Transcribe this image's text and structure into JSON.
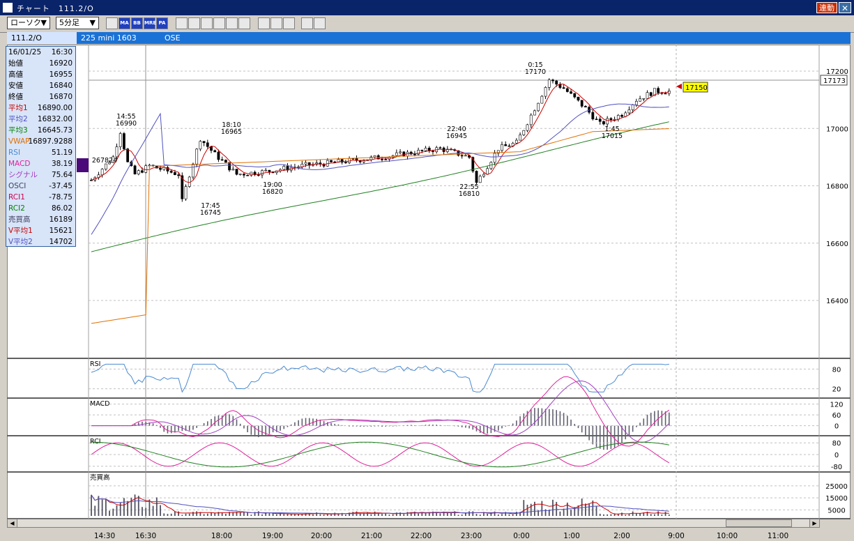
{
  "window": {
    "title": "チャート　111.2/O",
    "link_label": "連動",
    "close_label": "✕"
  },
  "toolbar": {
    "chart_type": "ローソク",
    "interval": "5分足",
    "icons": [
      "multi-chart",
      "ma",
      "bb",
      "mre",
      "pa",
      "line-chart",
      "candle-chart",
      "cross-cursor",
      "zoom",
      "draw-lines",
      "trend-lines",
      "pen",
      "pointer",
      "eraser",
      "magic",
      "fibonacci"
    ],
    "icon_labels": {
      "ma": "MA",
      "bb": "BB",
      "mre": "MRE",
      "pa": "PA"
    }
  },
  "infobar": {
    "symbol": "111.2/O",
    "name": "225 mini 1603",
    "exchange": "OSE"
  },
  "infobox": {
    "date": "16/01/25",
    "time": "16:30",
    "rows": [
      {
        "k": "始値",
        "v": "16920",
        "color": "#000000"
      },
      {
        "k": "高値",
        "v": "16955",
        "color": "#000000"
      },
      {
        "k": "安値",
        "v": "16840",
        "color": "#000000"
      },
      {
        "k": "終値",
        "v": "16870",
        "color": "#000000"
      },
      {
        "k": "平均1",
        "v": "16890.00",
        "color": "#cc0000"
      },
      {
        "k": "平均2",
        "v": "16832.00",
        "color": "#5050c0"
      },
      {
        "k": "平均3",
        "v": "16645.73",
        "color": "#008000"
      },
      {
        "k": "VWAP",
        "v": "16897.9288",
        "color": "#e07000"
      },
      {
        "k": "RSI",
        "v": "51.19",
        "color": "#4a8ad0"
      },
      {
        "k": "MACD",
        "v": "38.19",
        "color": "#e0209a"
      },
      {
        "k": "シグナル",
        "v": "75.64",
        "color": "#a040c0"
      },
      {
        "k": "OSCI",
        "v": "-37.45",
        "color": "#404060"
      },
      {
        "k": "RCI1",
        "v": "-78.75",
        "color": "#cc0050"
      },
      {
        "k": "RCI2",
        "v": "86.02",
        "color": "#008000"
      },
      {
        "k": "売買高",
        "v": "16189",
        "color": "#404060"
      },
      {
        "k": "V平均1",
        "v": "15621",
        "color": "#cc0000"
      },
      {
        "k": "V平均2",
        "v": "14702",
        "color": "#5050c0"
      }
    ]
  },
  "price_axis": {
    "ticks": [
      "17200",
      "17000",
      "16800",
      "16600",
      "16400"
    ],
    "current_label": "17173",
    "last_price_label": "17150"
  },
  "annotations": [
    {
      "time": "0:15",
      "price": "17170"
    },
    {
      "time": "14:55",
      "price": "16990"
    },
    {
      "time": "18:10",
      "price": "16965"
    },
    {
      "time": "22:40",
      "price": "16945"
    },
    {
      "time": "1:45",
      "price": "17015"
    },
    {
      "time": "19:00",
      "price": "16820"
    },
    {
      "time": "17:45",
      "price": "16745"
    },
    {
      "time": "22:55",
      "price": "16810"
    },
    {
      "time": "",
      "price": "267824"
    }
  ],
  "panels": {
    "rsi": {
      "label": "RSI",
      "ticks": [
        "80",
        "20"
      ]
    },
    "macd": {
      "label": "MACD",
      "ticks": [
        "120",
        "60",
        "0"
      ]
    },
    "rci": {
      "label": "RCI",
      "ticks": [
        "80",
        "0",
        "-80"
      ]
    },
    "volume": {
      "label": "売買高",
      "ticks": [
        "25000",
        "15000",
        "5000"
      ]
    }
  },
  "time_axis": [
    "14:30",
    "16:30",
    "18:00",
    "19:00",
    "20:00",
    "21:00",
    "22:00",
    "23:00",
    "0:00",
    "1:00",
    "2:00",
    "9:00",
    "10:00",
    "11:00"
  ],
  "colors": {
    "ma1": "#cc0000",
    "ma2": "#5050c0",
    "ma3": "#208020",
    "vwap": "#e07000",
    "rsi": "#4a8ad0",
    "macd": "#e0209a",
    "signal": "#a040c0",
    "rci1": "#e0209a",
    "rci2": "#208020"
  }
}
